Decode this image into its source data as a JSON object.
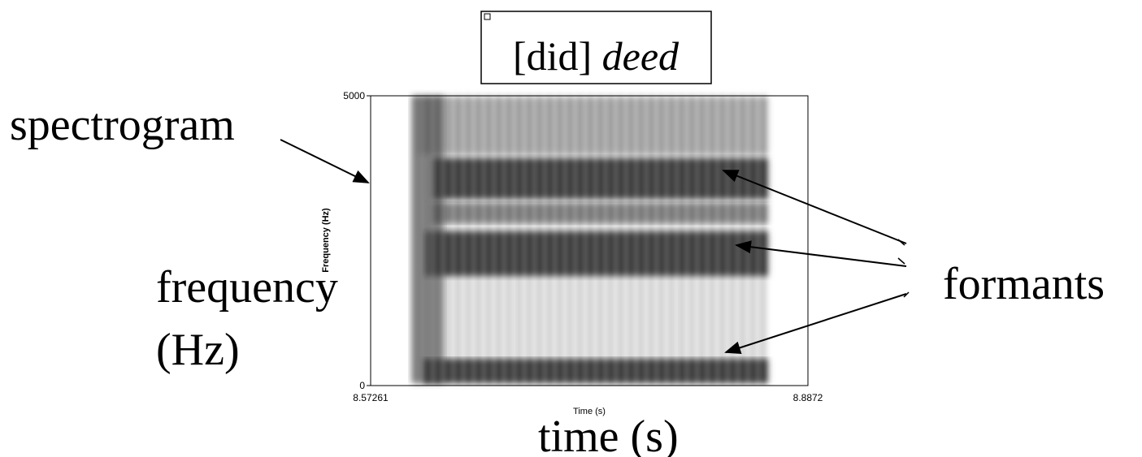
{
  "title": {
    "phonetic": "[did]",
    "word": "deed"
  },
  "labels": {
    "spectrogram": "spectrogram",
    "frequency": "frequency",
    "frequency_unit": "(Hz)",
    "formants": "formants",
    "time": "time (s)"
  },
  "plot": {
    "y_axis_label": "Frequency (Hz)",
    "x_axis_label": "Time (s)",
    "y_top": "5000",
    "y_bottom": "0",
    "x_start": "8.57261",
    "x_end": "8.8872"
  }
}
